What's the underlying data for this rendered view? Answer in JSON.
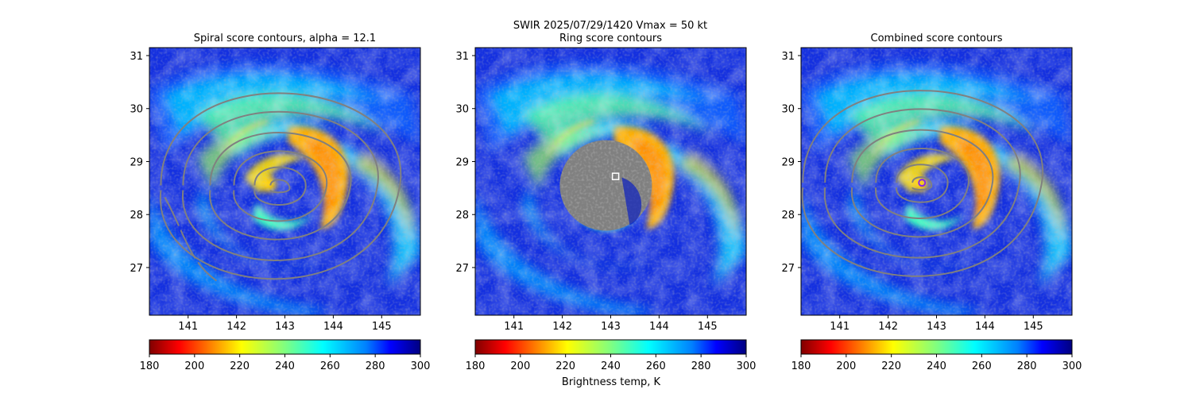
{
  "figure": {
    "suptitle_line1": "SWIR  2025/07/29/1420    Vmax = 50 kt"
  },
  "colorbar_label": "Brightness temp, K",
  "colors": {
    "contour": "#808080",
    "ring_mask": "#808080",
    "center_marker": "#8a2be2",
    "ring_marker": "#ffffff",
    "colormap": "jet_r"
  },
  "chart_data": [
    {
      "type": "heatmap",
      "title": "Spiral score contours, alpha = 12.1",
      "xlim": [
        140.2,
        145.8
      ],
      "ylim": [
        26.1,
        31.15
      ],
      "xticks": [
        141,
        142,
        143,
        144,
        145
      ],
      "yticks": [
        27,
        28,
        29,
        30,
        31
      ],
      "center": [
        142.9,
        28.55
      ],
      "overlay": "contours",
      "colorbar": {
        "range": [
          180,
          300
        ],
        "ticks": [
          180,
          200,
          220,
          240,
          260,
          280,
          300
        ]
      }
    },
    {
      "type": "heatmap",
      "title": "Ring score contours",
      "xlim": [
        140.2,
        145.8
      ],
      "ylim": [
        26.1,
        31.15
      ],
      "xticks": [
        141,
        142,
        143,
        144,
        145
      ],
      "yticks": [
        27,
        28,
        29,
        30,
        31
      ],
      "center": [
        142.9,
        28.55
      ],
      "overlay": "ring_mask",
      "ring_marker": [
        143.1,
        28.72
      ],
      "colorbar": {
        "range": [
          180,
          300
        ],
        "ticks": [
          180,
          200,
          220,
          240,
          260,
          280,
          300
        ]
      }
    },
    {
      "type": "heatmap",
      "title": "Combined score contours",
      "xlim": [
        140.2,
        145.8
      ],
      "ylim": [
        26.1,
        31.15
      ],
      "xticks": [
        141,
        142,
        143,
        144,
        145
      ],
      "yticks": [
        27,
        28,
        29,
        30,
        31
      ],
      "center": [
        142.7,
        28.6
      ],
      "overlay": "contours",
      "center_marker": [
        142.7,
        28.6
      ],
      "colorbar": {
        "range": [
          180,
          300
        ],
        "ticks": [
          180,
          200,
          220,
          240,
          260,
          280,
          300
        ]
      }
    }
  ]
}
